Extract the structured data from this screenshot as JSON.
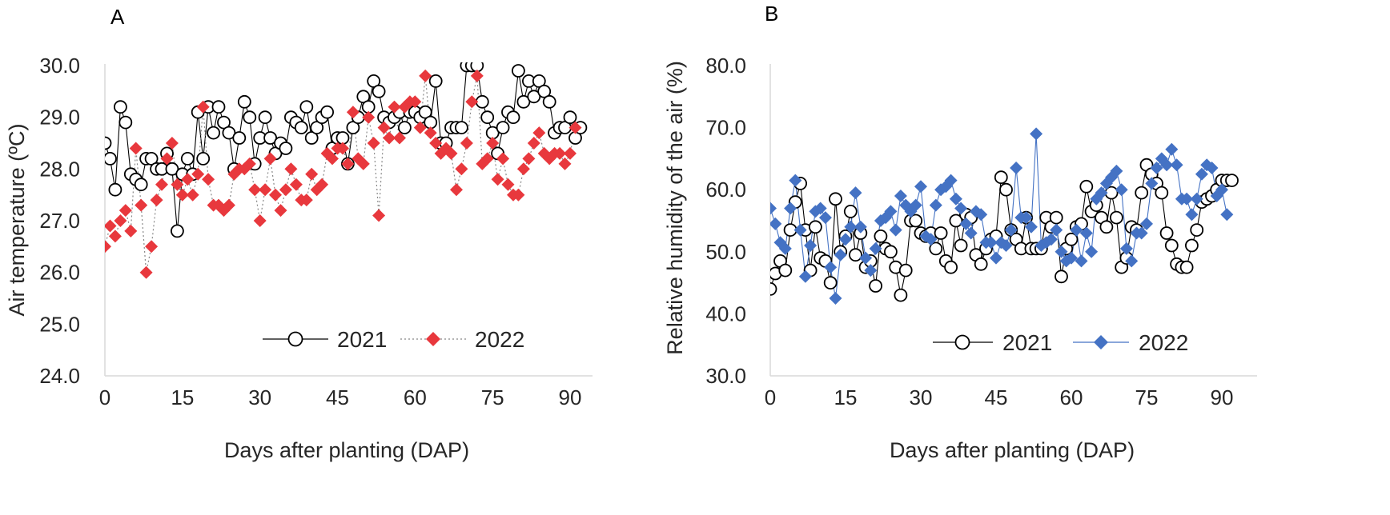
{
  "chart_data": [
    {
      "panel": "A",
      "type": "line",
      "ylabel": "Air temperature (ºC)",
      "xlabel": "Days after planting (DAP)",
      "ylim": [
        24,
        30
      ],
      "yticks": [
        "24.0",
        "25.0",
        "26.0",
        "27.0",
        "28.0",
        "29.0",
        "30.0"
      ],
      "xticks": [
        "0",
        "15",
        "30",
        "45",
        "60",
        "75",
        "90"
      ],
      "xlim": [
        0,
        93
      ],
      "grid": false,
      "legend": "bottom-center",
      "series": [
        {
          "name": "2021",
          "marker": "circle",
          "line": "solid",
          "color": "#000000",
          "x": [
            0,
            1,
            2,
            3,
            4,
            5,
            6,
            7,
            8,
            9,
            10,
            11,
            12,
            13,
            14,
            15,
            16,
            17,
            18,
            19,
            20,
            21,
            22,
            23,
            24,
            25,
            26,
            27,
            28,
            29,
            30,
            31,
            32,
            33,
            34,
            35,
            36,
            37,
            38,
            39,
            40,
            41,
            42,
            43,
            44,
            45,
            46,
            47,
            48,
            49,
            50,
            51,
            52,
            53,
            54,
            55,
            56,
            57,
            58,
            59,
            60,
            61,
            62,
            63,
            64,
            65,
            66,
            67,
            68,
            69,
            70,
            71,
            72,
            73,
            74,
            75,
            76,
            77,
            78,
            79,
            80,
            81,
            82,
            83,
            84,
            85,
            86,
            87,
            88,
            89,
            90,
            91,
            92
          ],
          "values": [
            28.5,
            28.2,
            27.6,
            29.2,
            28.9,
            27.9,
            27.8,
            27.7,
            28.2,
            28.2,
            28.0,
            28.0,
            28.3,
            28.0,
            26.8,
            27.9,
            28.2,
            27.9,
            29.1,
            28.2,
            29.2,
            28.7,
            29.2,
            28.9,
            28.7,
            28.0,
            28.6,
            29.3,
            29.0,
            28.1,
            28.6,
            29.0,
            28.6,
            28.3,
            28.5,
            28.4,
            29.0,
            28.9,
            28.8,
            29.2,
            28.6,
            28.8,
            29.0,
            29.1,
            28.4,
            28.6,
            28.6,
            28.1,
            28.8,
            29.0,
            29.4,
            29.2,
            29.7,
            29.5,
            29.0,
            28.9,
            29.0,
            29.1,
            28.8,
            29.1,
            29.1,
            29.0,
            29.1,
            28.9,
            29.7,
            28.5,
            28.5,
            28.8,
            28.8,
            28.8,
            30.0,
            30.0,
            30.0,
            29.3,
            29.0,
            28.7,
            28.3,
            28.8,
            29.1,
            29.0,
            29.9,
            29.3,
            29.7,
            29.4,
            29.7,
            29.5,
            29.3,
            28.7,
            28.8,
            28.8,
            29.0,
            28.6,
            28.8
          ]
        },
        {
          "name": "2022",
          "marker": "diamond",
          "line": "dotted",
          "color": "#e8383d",
          "x": [
            0,
            1,
            2,
            3,
            4,
            5,
            6,
            7,
            8,
            9,
            10,
            11,
            12,
            13,
            14,
            15,
            16,
            17,
            18,
            19,
            20,
            21,
            22,
            23,
            24,
            25,
            26,
            27,
            28,
            29,
            30,
            31,
            32,
            33,
            34,
            35,
            36,
            37,
            38,
            39,
            40,
            41,
            42,
            43,
            44,
            45,
            46,
            47,
            48,
            49,
            50,
            51,
            52,
            53,
            54,
            55,
            56,
            57,
            58,
            59,
            60,
            61,
            62,
            63,
            64,
            65,
            66,
            67,
            68,
            69,
            70,
            71,
            72,
            73,
            74,
            75,
            76,
            77,
            78,
            79,
            80,
            81,
            82,
            83,
            84,
            85,
            86,
            87,
            88,
            89,
            90,
            91
          ],
          "values": [
            26.5,
            26.9,
            26.7,
            27.0,
            27.2,
            26.8,
            28.4,
            27.3,
            26.0,
            26.5,
            27.4,
            27.7,
            28.2,
            28.5,
            27.7,
            27.5,
            27.8,
            27.5,
            27.9,
            29.2,
            27.8,
            27.3,
            27.3,
            27.2,
            27.3,
            27.9,
            28.0,
            28.0,
            28.1,
            27.6,
            27.0,
            27.6,
            28.2,
            27.5,
            27.2,
            27.6,
            28.0,
            27.7,
            27.4,
            27.4,
            27.9,
            27.6,
            27.7,
            28.3,
            28.2,
            28.4,
            28.4,
            28.1,
            29.1,
            28.2,
            28.1,
            29.0,
            28.5,
            27.1,
            28.8,
            28.6,
            29.2,
            28.6,
            29.2,
            29.3,
            29.3,
            28.8,
            29.8,
            28.7,
            28.5,
            28.3,
            28.4,
            28.3,
            27.6,
            28.0,
            28.5,
            29.3,
            29.8,
            28.1,
            28.2,
            28.5,
            27.8,
            28.2,
            27.7,
            27.5,
            27.5,
            28.0,
            28.2,
            28.5,
            28.7,
            28.3,
            28.2,
            28.3,
            28.3,
            28.1,
            28.3,
            28.8
          ]
        }
      ]
    },
    {
      "panel": "B",
      "type": "line",
      "ylabel": "Relative humidity of the air  (%)",
      "xlabel": "Days after planting (DAP)",
      "ylim": [
        30,
        80
      ],
      "yticks": [
        "30.0",
        "40.0",
        "50.0",
        "60.0",
        "70.0",
        "80.0"
      ],
      "xticks": [
        "0",
        "15",
        "30",
        "45",
        "60",
        "75",
        "90"
      ],
      "xlim": [
        0,
        93
      ],
      "grid": false,
      "legend": "bottom-right",
      "series": [
        {
          "name": "2021",
          "marker": "circle",
          "line": "solid",
          "color": "#000000",
          "x": [
            0,
            1,
            2,
            3,
            4,
            5,
            6,
            7,
            8,
            9,
            10,
            11,
            12,
            13,
            14,
            15,
            16,
            17,
            18,
            19,
            20,
            21,
            22,
            23,
            24,
            25,
            26,
            27,
            28,
            29,
            30,
            31,
            32,
            33,
            34,
            35,
            36,
            37,
            38,
            39,
            40,
            41,
            42,
            43,
            44,
            45,
            46,
            47,
            48,
            49,
            50,
            51,
            52,
            53,
            54,
            55,
            56,
            57,
            58,
            59,
            60,
            61,
            62,
            63,
            64,
            65,
            66,
            67,
            68,
            69,
            70,
            71,
            72,
            73,
            74,
            75,
            76,
            77,
            78,
            79,
            80,
            81,
            82,
            83,
            84,
            85,
            86,
            87,
            88,
            89,
            90,
            91,
            92
          ],
          "values": [
            44.0,
            46.5,
            48.5,
            47.0,
            53.5,
            58.0,
            61.0,
            53.5,
            47.0,
            54.0,
            49.0,
            48.5,
            45.0,
            58.5,
            50.0,
            52.5,
            56.5,
            49.5,
            53.0,
            47.5,
            48.5,
            44.5,
            52.5,
            50.5,
            50.0,
            47.5,
            43.0,
            47.0,
            55.0,
            55.0,
            53.0,
            52.5,
            53.0,
            50.5,
            53.0,
            48.5,
            47.5,
            55.0,
            51.0,
            56.0,
            55.5,
            49.5,
            48.0,
            50.5,
            52.0,
            52.5,
            62.0,
            60.0,
            53.5,
            52.0,
            50.5,
            55.5,
            50.5,
            50.5,
            50.5,
            55.5,
            54.0,
            55.5,
            46.0,
            50.5,
            52.0,
            54.0,
            54.5,
            60.5,
            56.5,
            57.5,
            55.5,
            54.0,
            59.5,
            55.5,
            47.5,
            49.0,
            54.0,
            53.5,
            59.5,
            64.0,
            62.5,
            61.0,
            59.5,
            53.0,
            51.0,
            48.0,
            47.5,
            47.5,
            51.0,
            53.5,
            58.0,
            58.5,
            59.0,
            60.0,
            61.5,
            61.5,
            61.5
          ]
        },
        {
          "name": "2022",
          "marker": "diamond",
          "line": "solid",
          "color": "#4472c4",
          "x": [
            0,
            1,
            2,
            3,
            4,
            5,
            6,
            7,
            8,
            9,
            10,
            11,
            12,
            13,
            14,
            15,
            16,
            17,
            18,
            19,
            20,
            21,
            22,
            23,
            24,
            25,
            26,
            27,
            28,
            29,
            30,
            31,
            32,
            33,
            34,
            35,
            36,
            37,
            38,
            39,
            40,
            41,
            42,
            43,
            44,
            45,
            46,
            47,
            48,
            49,
            50,
            51,
            52,
            53,
            54,
            55,
            56,
            57,
            58,
            59,
            60,
            61,
            62,
            63,
            64,
            65,
            66,
            67,
            68,
            69,
            70,
            71,
            72,
            73,
            74,
            75,
            76,
            77,
            78,
            79,
            80,
            81,
            82,
            83,
            84,
            85,
            86,
            87,
            88,
            89,
            90,
            91
          ],
          "values": [
            57.0,
            54.5,
            51.5,
            50.5,
            57.0,
            61.5,
            53.5,
            46.0,
            51.0,
            56.5,
            57.0,
            55.5,
            47.5,
            42.5,
            49.5,
            52.0,
            54.0,
            59.5,
            54.0,
            49.0,
            47.0,
            50.5,
            55.0,
            55.5,
            56.5,
            53.5,
            59.0,
            57.5,
            56.5,
            57.5,
            60.5,
            52.5,
            52.0,
            57.5,
            60.0,
            60.5,
            61.5,
            58.5,
            57.0,
            54.5,
            53.0,
            56.5,
            56.0,
            51.5,
            51.5,
            49.0,
            51.5,
            51.0,
            53.5,
            63.5,
            55.5,
            55.5,
            54.0,
            69.0,
            51.0,
            51.5,
            52.0,
            53.5,
            50.0,
            48.5,
            49.0,
            53.5,
            48.5,
            53.0,
            50.0,
            58.5,
            59.5,
            61.0,
            62.0,
            63.0,
            60.0,
            50.5,
            48.5,
            53.0,
            53.0,
            54.5,
            61.0,
            63.5,
            65.0,
            64.0,
            66.5,
            64.0,
            58.5,
            58.5,
            56.0,
            58.5,
            62.5,
            64.0,
            63.5,
            59.0,
            60.0,
            56.0
          ]
        }
      ]
    }
  ]
}
